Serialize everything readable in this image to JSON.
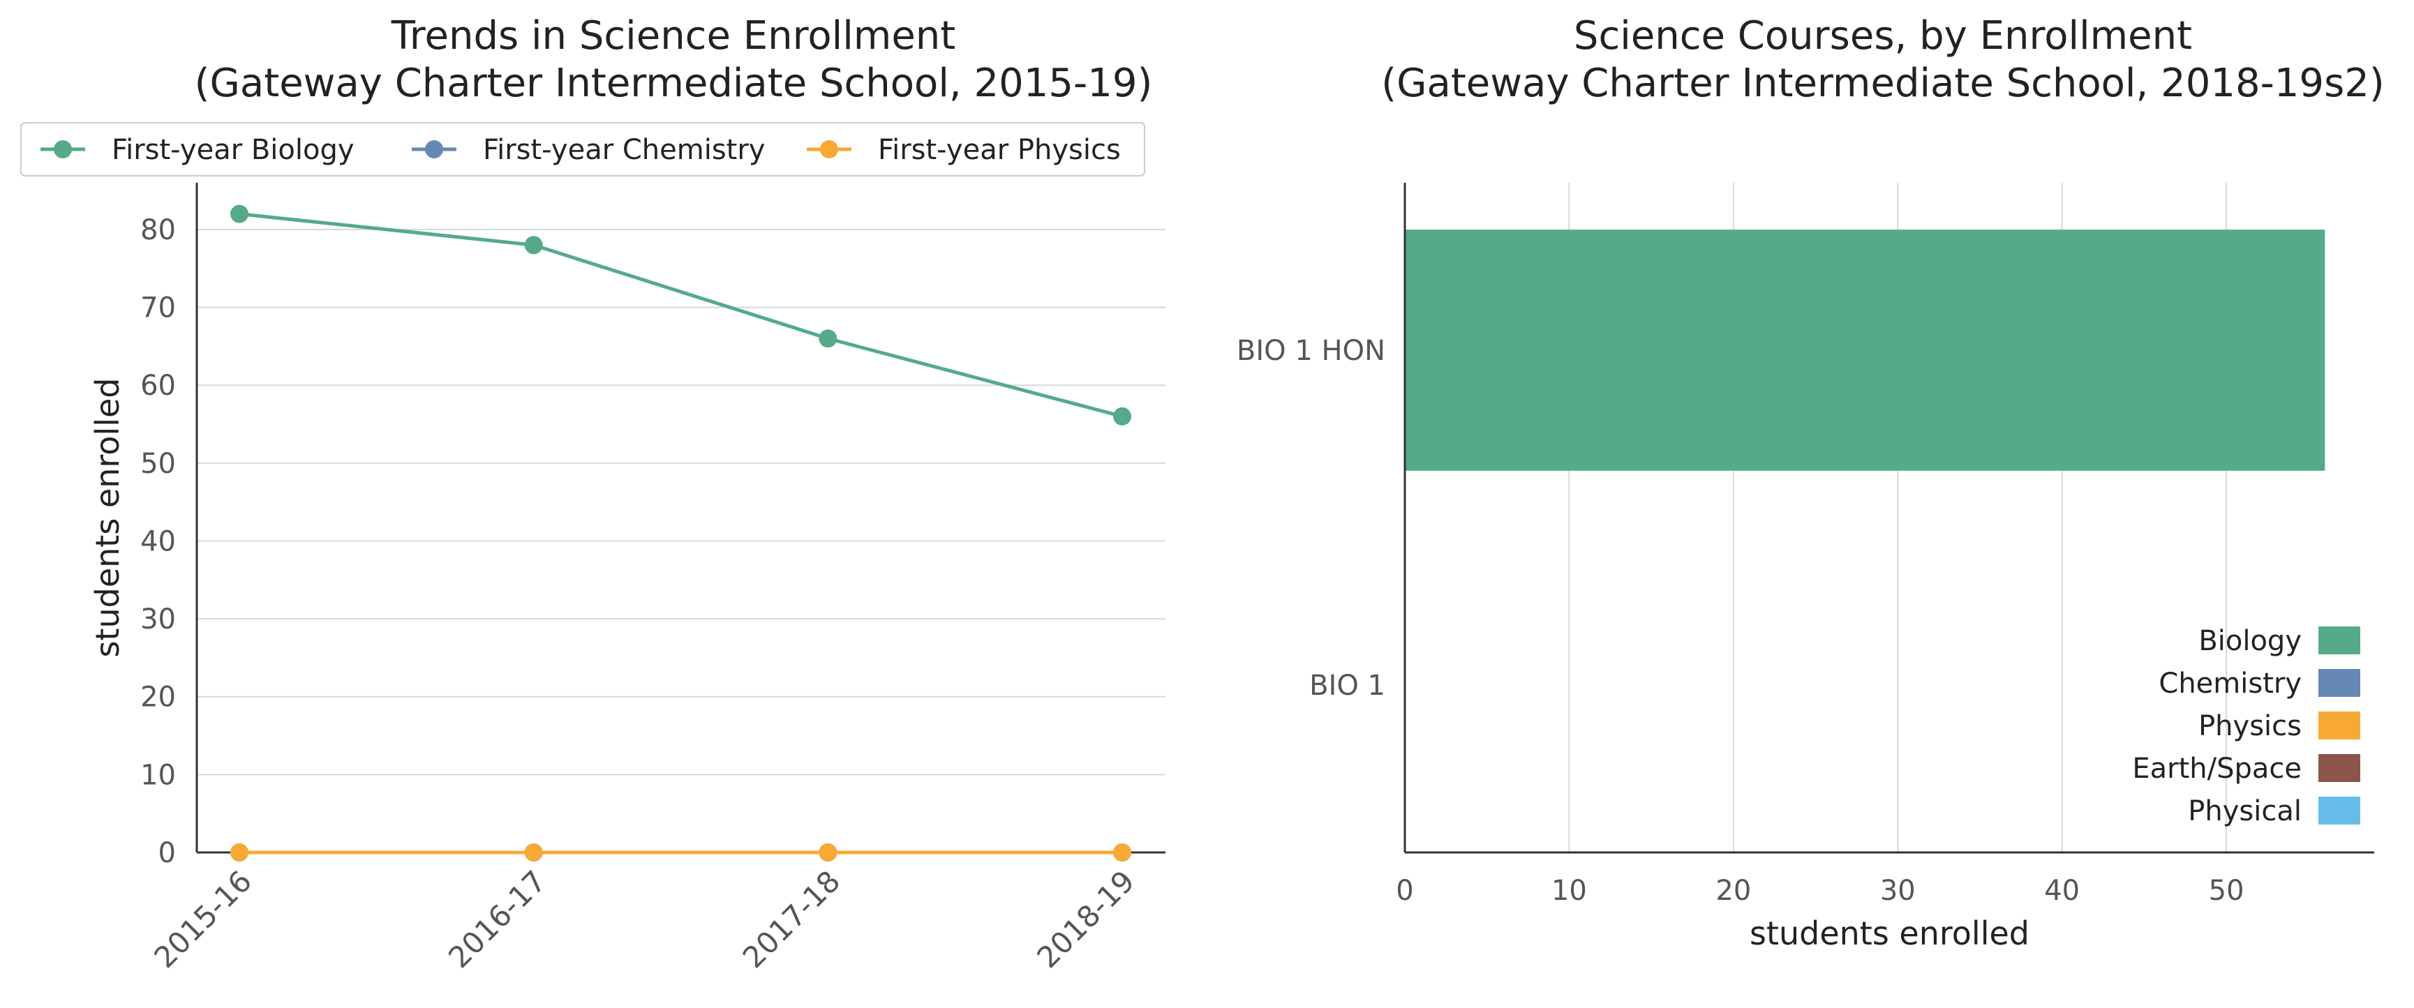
{
  "chart_data": [
    {
      "type": "line",
      "title": "Trends in Science Enrollment\n(Gateway Charter Intermediate School, 2015-19)",
      "title_lines": [
        "Trends in Science Enrollment",
        "(Gateway Charter Intermediate School, 2015-19)"
      ],
      "xlabel": "",
      "ylabel": "students enrolled",
      "categories": [
        "2015-16",
        "2016-17",
        "2017-18",
        "2018-19"
      ],
      "series": [
        {
          "name": "First-year Biology",
          "color": "#55aa88",
          "values": [
            82,
            78,
            66,
            56
          ]
        },
        {
          "name": "First-year Chemistry",
          "color": "#6688b4",
          "values": [
            0,
            0,
            0,
            0
          ]
        },
        {
          "name": "First-year Physics",
          "color": "#f7a934",
          "values": [
            0,
            0,
            0,
            0
          ]
        }
      ],
      "ylim": [
        0,
        86
      ],
      "yticks": [
        0,
        10,
        20,
        30,
        40,
        50,
        60,
        70,
        80
      ],
      "grid": "horizontal",
      "legend": "top"
    },
    {
      "type": "bar",
      "orientation": "horizontal",
      "title": "Science Courses, by Enrollment\n(Gateway Charter Intermediate School, 2018-19s2)",
      "title_lines": [
        "Science Courses, by Enrollment",
        "(Gateway Charter Intermediate School, 2018-19s2)"
      ],
      "xlabel": "students enrolled",
      "ylabel": "",
      "categories": [
        "BIO 1 HON",
        "BIO 1"
      ],
      "values": [
        56,
        0
      ],
      "bar_categories": [
        "Biology",
        "Biology"
      ],
      "xlim": [
        0,
        59
      ],
      "xticks": [
        0,
        10,
        20,
        30,
        40,
        50
      ],
      "grid": "vertical",
      "legend": "bottom-right",
      "legend_entries": [
        {
          "name": "Biology",
          "color": "#55aa88"
        },
        {
          "name": "Chemistry",
          "color": "#6688b4"
        },
        {
          "name": "Physics",
          "color": "#f7a934"
        },
        {
          "name": "Earth/Space",
          "color": "#8e5449"
        },
        {
          "name": "Physical",
          "color": "#66bdea"
        }
      ]
    }
  ]
}
